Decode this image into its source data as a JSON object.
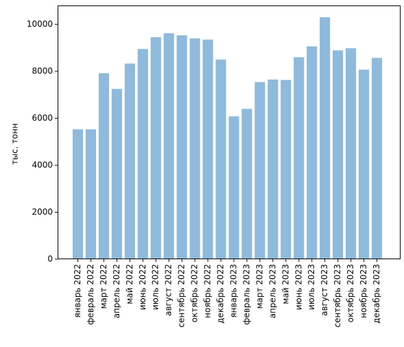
{
  "chart_data": {
    "type": "bar",
    "title": "",
    "xlabel": "",
    "ylabel": "тыс. тонн",
    "ylim": [
      0,
      10800
    ],
    "yticks": [
      0,
      2000,
      4000,
      6000,
      8000,
      10000
    ],
    "grid": false,
    "bar_color": "#8fbadb",
    "categories": [
      "январь 2022",
      "февраль 2022",
      "март 2022",
      "апрель 2022",
      "май 2022",
      "июнь 2022",
      "июль 2022",
      "август 2022",
      "сентябрь 2022",
      "октябрь 2022",
      "ноябрь 2022",
      "декабрь 2022",
      "январь 2023",
      "февраль 2023",
      "март 2023",
      "апрель 2023",
      "май 2023",
      "июнь 2023",
      "июль 2023",
      "август 2023",
      "сентябрь 2023",
      "октябрь 2023",
      "ноябрь 2023",
      "декабрь 2023"
    ],
    "values": [
      5530,
      5530,
      7920,
      7250,
      8330,
      8950,
      9450,
      9620,
      9530,
      9400,
      9350,
      8500,
      6080,
      6400,
      7540,
      7650,
      7630,
      8600,
      9060,
      10300,
      8890,
      8980,
      8070,
      8570
    ]
  }
}
